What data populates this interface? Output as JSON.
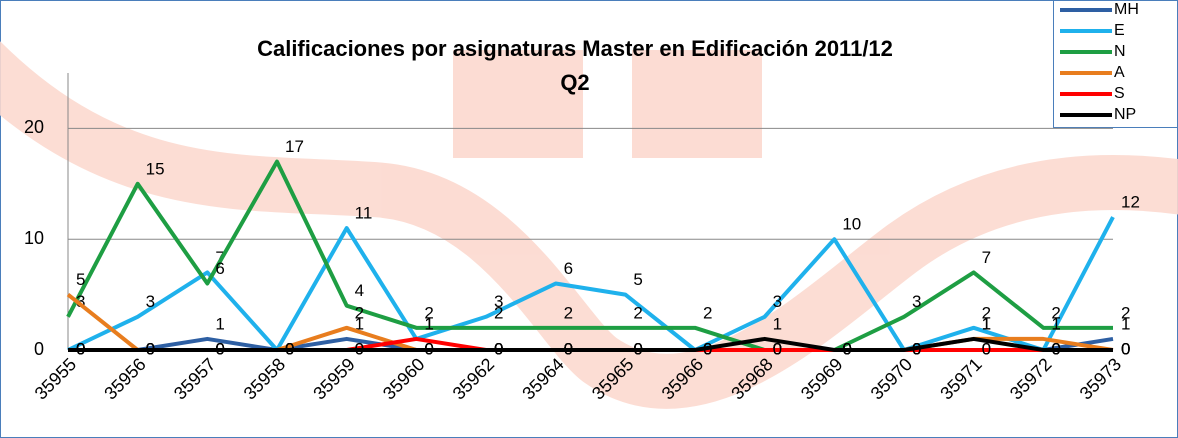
{
  "chart_data": {
    "type": "line",
    "title": [
      "Calificaciones por asignaturas Master en Edificación 2011/12",
      "Q2"
    ],
    "categories": [
      "35955",
      "35956",
      "35957",
      "35958",
      "35959",
      "35960",
      "35962",
      "35964",
      "35965",
      "35966",
      "35968",
      "35969",
      "35970",
      "35971",
      "35972",
      "35973"
    ],
    "series": [
      {
        "name": "MH",
        "color": "#2e5fa3",
        "values": [
          0,
          0,
          1,
          0,
          1,
          0,
          0,
          0,
          0,
          0,
          0,
          0,
          0,
          0,
          0,
          1
        ]
      },
      {
        "name": "E",
        "color": "#1fb1ec",
        "values": [
          0,
          3,
          7,
          0,
          11,
          1,
          3,
          6,
          5,
          0,
          3,
          10,
          0,
          2,
          0,
          12
        ]
      },
      {
        "name": "N",
        "color": "#1e9e43",
        "values": [
          3,
          15,
          6,
          17,
          4,
          2,
          2,
          2,
          2,
          2,
          0,
          0,
          3,
          7,
          2,
          2
        ]
      },
      {
        "name": "A",
        "color": "#e87d1e",
        "values": [
          5,
          0,
          0,
          0,
          2,
          0,
          0,
          0,
          0,
          0,
          0,
          0,
          0,
          1,
          1,
          0
        ]
      },
      {
        "name": "S",
        "color": "#ff0000",
        "values": [
          0,
          0,
          0,
          0,
          0,
          1,
          0,
          0,
          0,
          0,
          0,
          0,
          0,
          0,
          0,
          0
        ]
      },
      {
        "name": "NP",
        "color": "#000000",
        "values": [
          0,
          0,
          0,
          0,
          0,
          0,
          0,
          0,
          0,
          0,
          1,
          0,
          0,
          1,
          0,
          0
        ]
      }
    ],
    "ylim": [
      0,
      25
    ],
    "yticks": [
      0,
      10,
      20
    ],
    "grid": true,
    "legend": "top-right"
  }
}
